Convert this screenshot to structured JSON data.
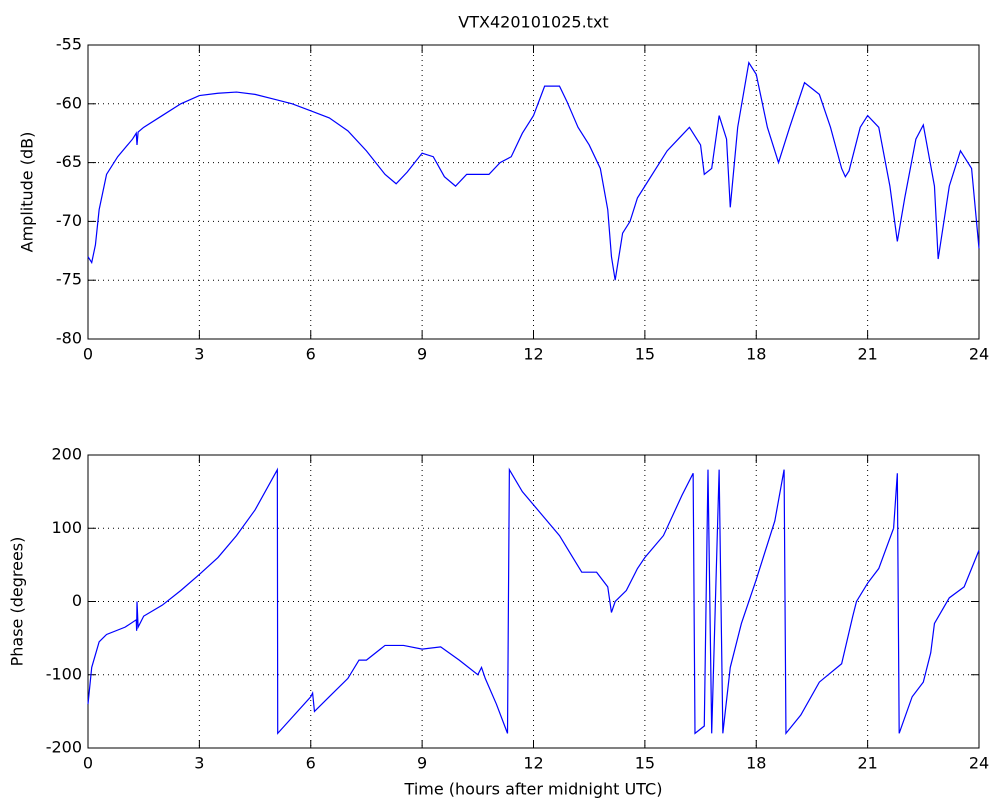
{
  "chart_data": [
    {
      "type": "line",
      "title": "VTX420101025.txt",
      "ylabel": "Amplitude (dB)",
      "x": [
        0,
        0.1,
        0.2,
        0.3,
        0.5,
        0.8,
        1.2,
        1.3,
        1.32,
        1.35,
        1.5,
        2,
        2.5,
        3,
        3.5,
        4,
        4.5,
        5,
        5.5,
        6,
        6.5,
        7,
        7.5,
        8,
        8.3,
        8.6,
        9,
        9.3,
        9.6,
        9.9,
        10.2,
        10.5,
        10.8,
        11.1,
        11.4,
        11.7,
        12,
        12.3,
        12.7,
        12.9,
        13.2,
        13.5,
        13.8,
        14,
        14.1,
        14.2,
        14.4,
        14.6,
        14.8,
        15,
        15.3,
        15.6,
        15.9,
        16.2,
        16.5,
        16.6,
        16.8,
        17,
        17.2,
        17.3,
        17.5,
        17.8,
        18,
        18.3,
        18.6,
        18.9,
        19.3,
        19.7,
        20,
        20.3,
        20.4,
        20.5,
        20.8,
        21,
        21.3,
        21.6,
        21.8,
        22,
        22.3,
        22.5,
        22.8,
        22.9,
        23.2,
        23.5,
        23.8,
        24
      ],
      "color": "#0000ff",
      "values": [
        -73,
        -73.5,
        -72,
        -69,
        -66,
        -64.5,
        -63,
        -62.5,
        -63.5,
        -62.4,
        -62,
        -61,
        -60,
        -59.3,
        -59.1,
        -59,
        -59.2,
        -59.6,
        -60,
        -60.6,
        -61.2,
        -62.3,
        -64,
        -66,
        -66.8,
        -65.8,
        -64.2,
        -64.5,
        -66.2,
        -67,
        -66,
        -66,
        -66,
        -65,
        -64.5,
        -62.5,
        -61,
        -58.5,
        -58.5,
        -59.8,
        -62,
        -63.5,
        -65.5,
        -69,
        -73,
        -75,
        -71,
        -70,
        -68,
        -67,
        -65.5,
        -64,
        -63,
        -62,
        -63.5,
        -66,
        -65.5,
        -61,
        -63,
        -68.8,
        -62,
        -56.5,
        -57.5,
        -62,
        -65,
        -62,
        -58.2,
        -59.2,
        -62,
        -65.5,
        -66.2,
        -65.7,
        -62,
        -61,
        -62,
        -67,
        -71.7,
        -68,
        -63,
        -61.8,
        -67,
        -73.2,
        -67,
        -64,
        -65.5,
        -72.3
      ],
      "xlim": [
        0,
        24
      ],
      "xticks": [
        0,
        3,
        6,
        9,
        12,
        15,
        18,
        21,
        24
      ],
      "ylim": [
        -80,
        -55
      ],
      "yticks": [
        -80,
        -75,
        -70,
        -65,
        -60,
        -55
      ],
      "grid": true
    },
    {
      "type": "line",
      "xlabel": "Time (hours after midnight UTC)",
      "ylabel": "Phase (degrees)",
      "x": [
        0,
        0.1,
        0.3,
        0.5,
        1,
        1.3,
        1.31,
        1.32,
        1.35,
        1.5,
        2,
        2.5,
        3,
        3.5,
        4,
        4.5,
        5.1,
        5.11,
        6,
        6.05,
        6.1,
        6.5,
        7,
        7.3,
        7.5,
        8,
        8.5,
        9,
        9.5,
        10,
        10.5,
        10.6,
        10.7,
        11,
        11.3,
        11.35,
        11.7,
        12.2,
        12.7,
        13,
        13.3,
        13.7,
        14,
        14.1,
        14.2,
        14.5,
        14.8,
        15,
        15.5,
        16,
        16.3,
        16.35,
        16.6,
        16.7,
        16.8,
        17,
        17.1,
        17.3,
        17.6,
        18,
        18.5,
        18.75,
        18.8,
        19.2,
        19.7,
        20.3,
        20.6,
        20.7,
        21,
        21.3,
        21.7,
        21.8,
        21.85,
        22.2,
        22.5,
        22.7,
        22.8,
        23.2,
        23.6,
        24
      ],
      "color": "#0000ff",
      "values": [
        -140,
        -90,
        -55,
        -45,
        -35,
        -25,
        -40,
        0,
        -35,
        -20,
        -5,
        15,
        37,
        60,
        90,
        125,
        180,
        -180,
        -130,
        -125,
        -150,
        -130,
        -105,
        -80,
        -80,
        -60,
        -60,
        -65,
        -62,
        -80,
        -100,
        -90,
        -105,
        -140,
        -180,
        180,
        150,
        120,
        90,
        65,
        40,
        40,
        20,
        -15,
        0,
        15,
        45,
        60,
        90,
        145,
        175,
        -180,
        -170,
        180,
        -180,
        180,
        -180,
        -90,
        -30,
        30,
        110,
        180,
        -180,
        -155,
        -110,
        -85,
        -20,
        0,
        25,
        45,
        100,
        175,
        -180,
        -130,
        -110,
        -70,
        -30,
        5,
        20,
        70
      ],
      "xlim": [
        0,
        24
      ],
      "xticks": [
        0,
        3,
        6,
        9,
        12,
        15,
        18,
        21,
        24
      ],
      "ylim": [
        -200,
        200
      ],
      "yticks": [
        -200,
        -100,
        0,
        100,
        200
      ],
      "grid": true
    }
  ]
}
